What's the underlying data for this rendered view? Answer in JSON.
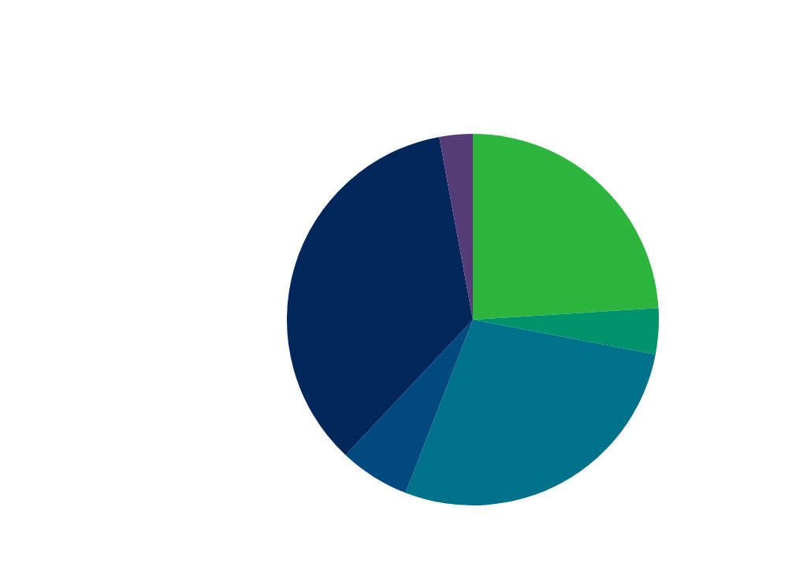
{
  "chart_data": {
    "type": "pie",
    "categories": [
      null,
      null,
      null,
      null,
      null,
      null
    ],
    "values": [
      24.0,
      4.0,
      27.9,
      6.1,
      35.1,
      2.9
    ],
    "colors": [
      "#2db540",
      "#00936b",
      "#00718a",
      "#004a80",
      "#00265a",
      "#553d78"
    ],
    "legend": false
  }
}
